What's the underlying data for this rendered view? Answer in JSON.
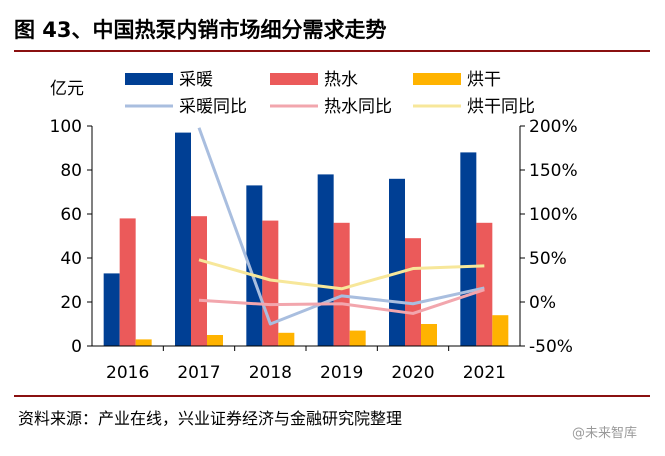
{
  "title": "图 43、中国热泵内销市场细分需求走势",
  "source": "资料来源：产业在线，兴业证券经济与金融研究院整理",
  "watermark": "@未来智库",
  "colors": {
    "heating": "#003f94",
    "hotwater": "#eb5a5a",
    "drying": "#ffb300",
    "heating_yoy": "#a9bedf",
    "hotwater_yoy": "#f2a6ad",
    "drying_yoy": "#f7e79a",
    "rule": "#8a1010"
  },
  "chart_data": {
    "type": "bar",
    "categories": [
      "2016",
      "2017",
      "2018",
      "2019",
      "2020",
      "2021"
    ],
    "ylabel": "亿元",
    "ylim": [
      0,
      100
    ],
    "yticks": [
      "0",
      "20",
      "40",
      "60",
      "80",
      "100"
    ],
    "y2lim": [
      -50,
      200
    ],
    "y2ticks": [
      "-50%",
      "0%",
      "50%",
      "100%",
      "150%",
      "200%"
    ],
    "legend": [
      "采暖",
      "热水",
      "烘干",
      "采暖同比",
      "热水同比",
      "烘干同比"
    ],
    "legend_position": "top",
    "grid": false,
    "series": [
      {
        "name": "采暖",
        "type": "bar",
        "axis": "left",
        "values": [
          33,
          97,
          73,
          78,
          76,
          88
        ]
      },
      {
        "name": "热水",
        "type": "bar",
        "axis": "left",
        "values": [
          58,
          59,
          57,
          56,
          49,
          56
        ]
      },
      {
        "name": "烘干",
        "type": "bar",
        "axis": "left",
        "values": [
          3,
          5,
          6,
          7,
          10,
          14
        ]
      },
      {
        "name": "采暖同比",
        "type": "line",
        "axis": "right",
        "values": [
          null,
          198,
          -25,
          7,
          -2,
          16
        ]
      },
      {
        "name": "热水同比",
        "type": "line",
        "axis": "right",
        "values": [
          null,
          2,
          -3,
          -2,
          -13,
          14
        ]
      },
      {
        "name": "烘干同比",
        "type": "line",
        "axis": "right",
        "values": [
          null,
          48,
          25,
          15,
          38,
          41
        ]
      }
    ]
  }
}
